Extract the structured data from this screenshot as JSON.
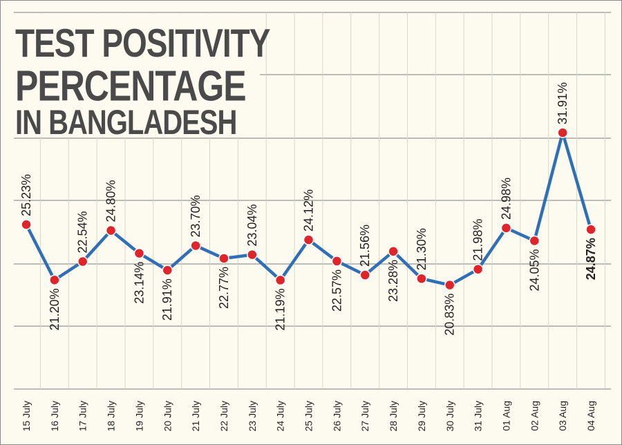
{
  "chart_data": {
    "type": "line",
    "title_lines": [
      "TEST POSITIVITY",
      "PERCENTAGE",
      "IN BANGLADESH"
    ],
    "categories": [
      "15 July",
      "16 July",
      "17 July",
      "18 July",
      "19 July",
      "20 July",
      "21 July",
      "22 July",
      "23 July",
      "24 July",
      "25 July",
      "26 July",
      "27 July",
      "28 July",
      "29 July",
      "30 July",
      "31 July",
      "01 Aug",
      "02 Aug",
      "03 Aug",
      "04 Aug"
    ],
    "values": [
      25.23,
      21.2,
      22.54,
      24.8,
      23.14,
      21.91,
      23.7,
      22.77,
      23.04,
      21.19,
      24.12,
      22.57,
      21.56,
      23.28,
      21.3,
      20.83,
      21.98,
      24.98,
      24.05,
      31.91,
      24.87
    ],
    "value_labels": [
      "25.23%",
      "21.20%",
      "22.54%",
      "24.80%",
      "23.14%",
      "21.91%",
      "23.70%",
      "22.77%",
      "23.04%",
      "21.19%",
      "24.12%",
      "22.57%",
      "21.56%",
      "23.28%",
      "21.30%",
      "20.83%",
      "21.98%",
      "24.98%",
      "24.05%",
      "31.91%",
      "24.87%"
    ],
    "label_above": [
      true,
      false,
      true,
      true,
      false,
      false,
      true,
      false,
      true,
      false,
      true,
      false,
      true,
      false,
      true,
      false,
      true,
      true,
      false,
      true,
      false
    ],
    "highlight_last": true,
    "grid": true,
    "line_color": "#2f6fb7",
    "marker_color": "#e0252a",
    "background": "#fdfbf0"
  }
}
